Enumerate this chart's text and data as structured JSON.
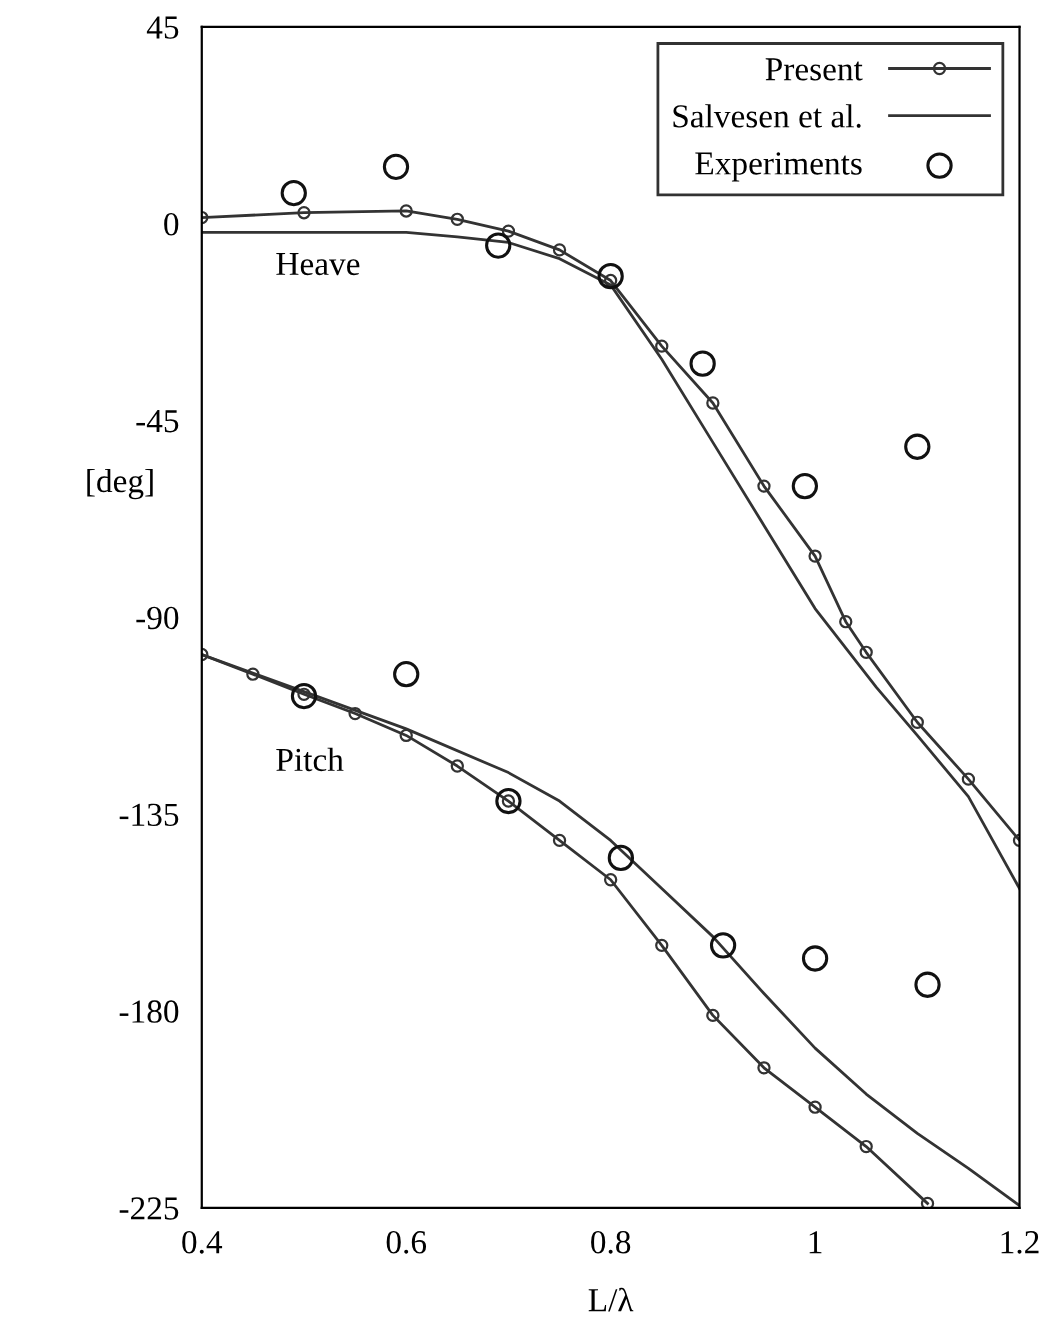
{
  "chart_data": {
    "type": "line",
    "xlabel": "L/λ",
    "ylabel": "[deg]",
    "xlim": [
      0.4,
      1.2
    ],
    "ylim": [
      -225,
      45
    ],
    "xticks": [
      0.4,
      0.6,
      0.8,
      1,
      1.2
    ],
    "yticks": [
      45,
      0,
      -45,
      -90,
      -135,
      -180,
      -225
    ],
    "grid": false,
    "legend": "top right",
    "series": [
      {
        "name": "Present",
        "color": "#333333",
        "marker": "circle",
        "line_style": "solid",
        "x": [
          0.4,
          0.5,
          0.6,
          0.65,
          0.7,
          0.75,
          0.8,
          0.85,
          0.9,
          0.95,
          1.0,
          1.03,
          1.05,
          1.1,
          1.15,
          1.2
        ],
        "values": [
          1.4,
          2.5,
          2.9,
          1,
          -1.7,
          -6,
          -13,
          -28,
          -41,
          -60,
          -76,
          -91,
          -98,
          -114,
          -127,
          -141
        ]
      },
      {
        "name": "Salvesen et al.",
        "color": "#333333",
        "marker": "none",
        "line_style": "solid",
        "x": [
          0.4,
          0.5,
          0.6,
          0.65,
          0.7,
          0.75,
          0.8,
          0.85,
          0.9,
          0.95,
          1.0,
          1.06,
          1.1,
          1.15,
          1.2
        ],
        "values": [
          -2,
          -2,
          -2,
          -3,
          -4.3,
          -8,
          -14,
          -31,
          -50,
          -69,
          -88,
          -106,
          -117,
          -131,
          -152
        ]
      },
      {
        "name": "Experiments",
        "type": "scatter",
        "color": "#111111",
        "marker": "circle",
        "x": [
          0.49,
          0.59,
          0.69,
          0.8,
          0.89,
          0.99,
          1.1
        ],
        "values": [
          7,
          13,
          -5,
          -12,
          -32,
          -60,
          -51
        ]
      },
      {
        "color": "#333333",
        "marker": "circle",
        "line_style": "solid",
        "x": [
          0.4,
          0.45,
          0.5,
          0.55,
          0.6,
          0.65,
          0.7,
          0.75,
          0.8,
          0.85,
          0.9,
          0.95,
          1.0,
          1.05,
          1.11
        ],
        "values": [
          -98.5,
          -103,
          -107.6,
          -112,
          -117,
          -124,
          -132,
          -141,
          -150,
          -165,
          -181,
          -193,
          -202,
          -211,
          -224
        ]
      },
      {
        "color": "#333333",
        "marker": "none",
        "line_style": "solid",
        "x": [
          0.4,
          0.5,
          0.6,
          0.7,
          0.75,
          0.8,
          0.85,
          0.9,
          0.95,
          1.0,
          1.05,
          1.1,
          1.15,
          1.2
        ],
        "values": [
          -98.5,
          -107,
          -115.5,
          -125.5,
          -132,
          -141,
          -152,
          -163,
          -176,
          -188.5,
          -199,
          -208,
          -216,
          -224.5
        ]
      },
      {
        "type": "scatter",
        "color": "#111111",
        "marker": "circle",
        "x": [
          0.5,
          0.6,
          0.7,
          0.81,
          0.91,
          1.0,
          1.11
        ],
        "values": [
          -108,
          -103,
          -132,
          -145,
          -165,
          -168,
          -174
        ]
      }
    ],
    "annotations": [
      "Heave",
      "Pitch"
    ]
  }
}
